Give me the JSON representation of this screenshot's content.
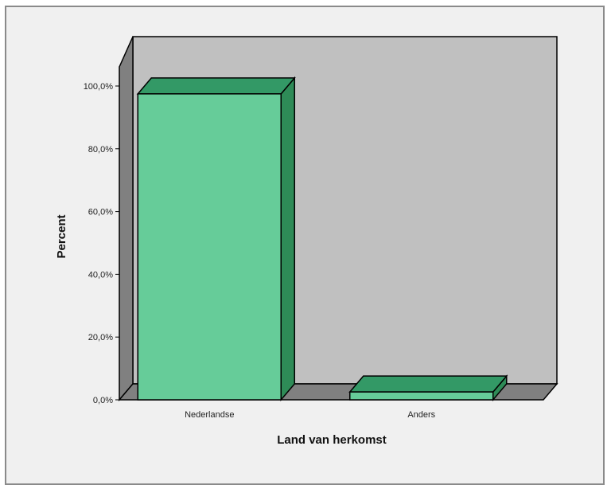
{
  "chart_data": {
    "type": "bar",
    "categories": [
      "Nederlandse",
      "Anders"
    ],
    "values": [
      97.5,
      2.5
    ],
    "xlabel": "Land van herkomst",
    "ylabel": "Percent",
    "ylim": [
      0,
      100
    ],
    "yticks": [
      "0,0%",
      "20,0%",
      "40,0%",
      "60,0%",
      "80,0%",
      "100,0%"
    ],
    "ytick_values": [
      0,
      20,
      40,
      60,
      80,
      100
    ],
    "grid": false,
    "style": "3d"
  },
  "colors": {
    "bar_front": "#66cc99",
    "bar_top": "#339966",
    "bar_side": "#2e8b57",
    "wall_back": "#c0c0c0",
    "wall_side": "#808080",
    "floor": "#808080",
    "frame_bg": "#f0f0f0"
  }
}
